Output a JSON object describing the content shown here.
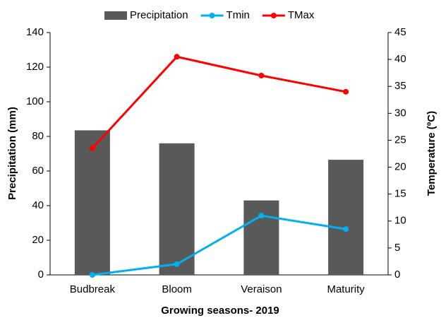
{
  "chart_data": {
    "type": "bar",
    "categories": [
      "Budbreak",
      "Bloom",
      "Veraison",
      "Maturity"
    ],
    "series": [
      {
        "name": "Precipitation",
        "type": "bar",
        "color": "#595959",
        "axis": "y",
        "values": [
          83.5,
          76,
          43,
          66.5
        ]
      },
      {
        "name": "Tmin",
        "type": "line",
        "color": "#00b0f0",
        "axis": "y2",
        "values": [
          0,
          2,
          11,
          8.5
        ]
      },
      {
        "name": "TMax",
        "type": "line",
        "color": "#ff0000",
        "axis": "y2",
        "values": [
          23.5,
          40.5,
          37,
          34
        ]
      }
    ],
    "ylabel": "Precipitation (mm)",
    "y2label": "Temperature (ºC)",
    "xlabel": "Growing seasons- 2019",
    "ylim": [
      0,
      140
    ],
    "yticks": [
      0,
      20,
      40,
      60,
      80,
      100,
      120,
      140
    ],
    "y2lim": [
      0,
      45
    ],
    "y2ticks": [
      0,
      5,
      10,
      15,
      20,
      25,
      30,
      35,
      40,
      45
    ],
    "legend": "top",
    "grid": false
  }
}
